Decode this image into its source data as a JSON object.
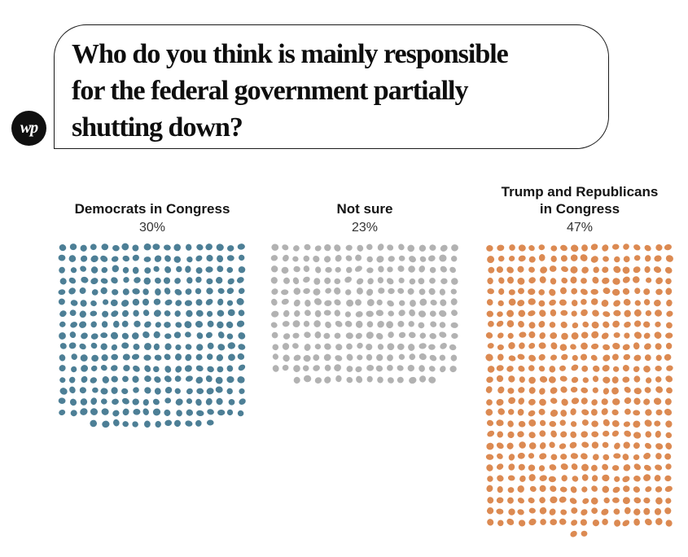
{
  "header": {
    "question_lines": [
      "Who do you think is mainly responsible",
      "for the federal government partially",
      "shutting down?"
    ],
    "logo_text": "wp"
  },
  "chart_data": {
    "type": "dot-waffle",
    "title": "Who do you think is mainly responsible for the federal government partially shutting down?",
    "categories": [
      "Democrats in Congress",
      "Not sure",
      "Trump and Republicans in Congress"
    ],
    "values": [
      30,
      23,
      47
    ],
    "legend_position": "none",
    "grid": false,
    "groups": [
      {
        "label": "Democrats in Congress",
        "value": 30,
        "value_label": "30%",
        "dot_count": 300,
        "color": "#4d7f96"
      },
      {
        "label": "Not sure",
        "value": 23,
        "value_label": "23%",
        "dot_count": 230,
        "color": "#b2b2b2"
      },
      {
        "label": "Trump and Republicans\nin Congress",
        "value": 47,
        "value_label": "47%",
        "dot_count": 470,
        "color": "#dc8a52"
      }
    ]
  }
}
